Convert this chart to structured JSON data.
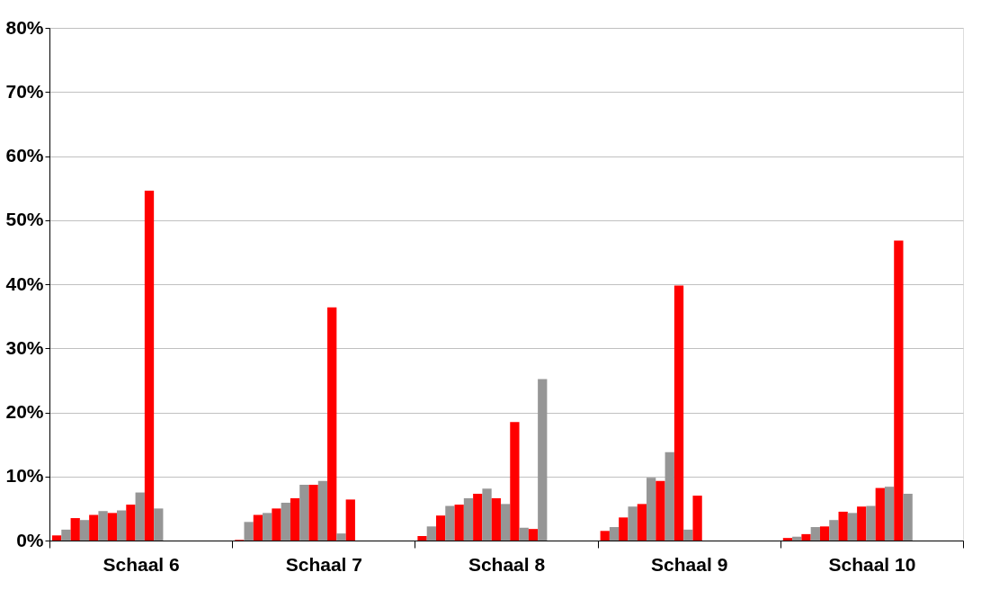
{
  "chart_data": {
    "type": "bar",
    "categories": [
      "Schaal 6",
      "Schaal 7",
      "Schaal 8",
      "Schaal 9",
      "Schaal 10"
    ],
    "series": [
      {
        "color": "#ff0000",
        "values": [
          0.8,
          0.1,
          0.7,
          1.5,
          0.4
        ]
      },
      {
        "color": "#969696",
        "values": [
          1.7,
          2.9,
          2.2,
          2.1,
          0.6
        ]
      },
      {
        "color": "#ff0000",
        "values": [
          3.5,
          4.0,
          3.9,
          3.6,
          1.0
        ]
      },
      {
        "color": "#969696",
        "values": [
          3.2,
          4.3,
          5.4,
          5.3,
          2.1
        ]
      },
      {
        "color": "#ff0000",
        "values": [
          4.0,
          5.0,
          5.6,
          5.7,
          2.2
        ]
      },
      {
        "color": "#969696",
        "values": [
          4.6,
          5.9,
          6.6,
          9.8,
          3.2
        ]
      },
      {
        "color": "#ff0000",
        "values": [
          4.3,
          6.6,
          7.3,
          9.3,
          4.5
        ]
      },
      {
        "color": "#969696",
        "values": [
          4.7,
          8.7,
          8.1,
          13.8,
          4.3
        ]
      },
      {
        "color": "#ff0000",
        "values": [
          5.6,
          8.7,
          6.6,
          39.8,
          5.3
        ]
      },
      {
        "color": "#969696",
        "values": [
          7.5,
          9.3,
          5.7,
          1.7,
          5.4
        ]
      },
      {
        "color": "#ff0000",
        "values": [
          54.6,
          36.4,
          18.5,
          7.0,
          8.2
        ]
      },
      {
        "color": "#969696",
        "values": [
          5.0,
          1.1,
          2.0,
          null,
          8.4
        ]
      },
      {
        "color": "#ff0000",
        "values": [
          null,
          6.4,
          1.8,
          null,
          46.8
        ]
      },
      {
        "color": "#969696",
        "values": [
          null,
          null,
          25.2,
          null,
          7.3
        ]
      }
    ],
    "ylim": [
      0,
      80
    ],
    "yticks": [
      {
        "value": 0,
        "label": "0%"
      },
      {
        "value": 10,
        "label": "10%"
      },
      {
        "value": 20,
        "label": "20%"
      },
      {
        "value": 30,
        "label": "30%"
      },
      {
        "value": 40,
        "label": "40%"
      },
      {
        "value": 50,
        "label": "50%"
      },
      {
        "value": 60,
        "label": "60%"
      },
      {
        "value": 70,
        "label": "70%"
      },
      {
        "value": 80,
        "label": "80%"
      }
    ],
    "grid": "y",
    "legend": false
  }
}
